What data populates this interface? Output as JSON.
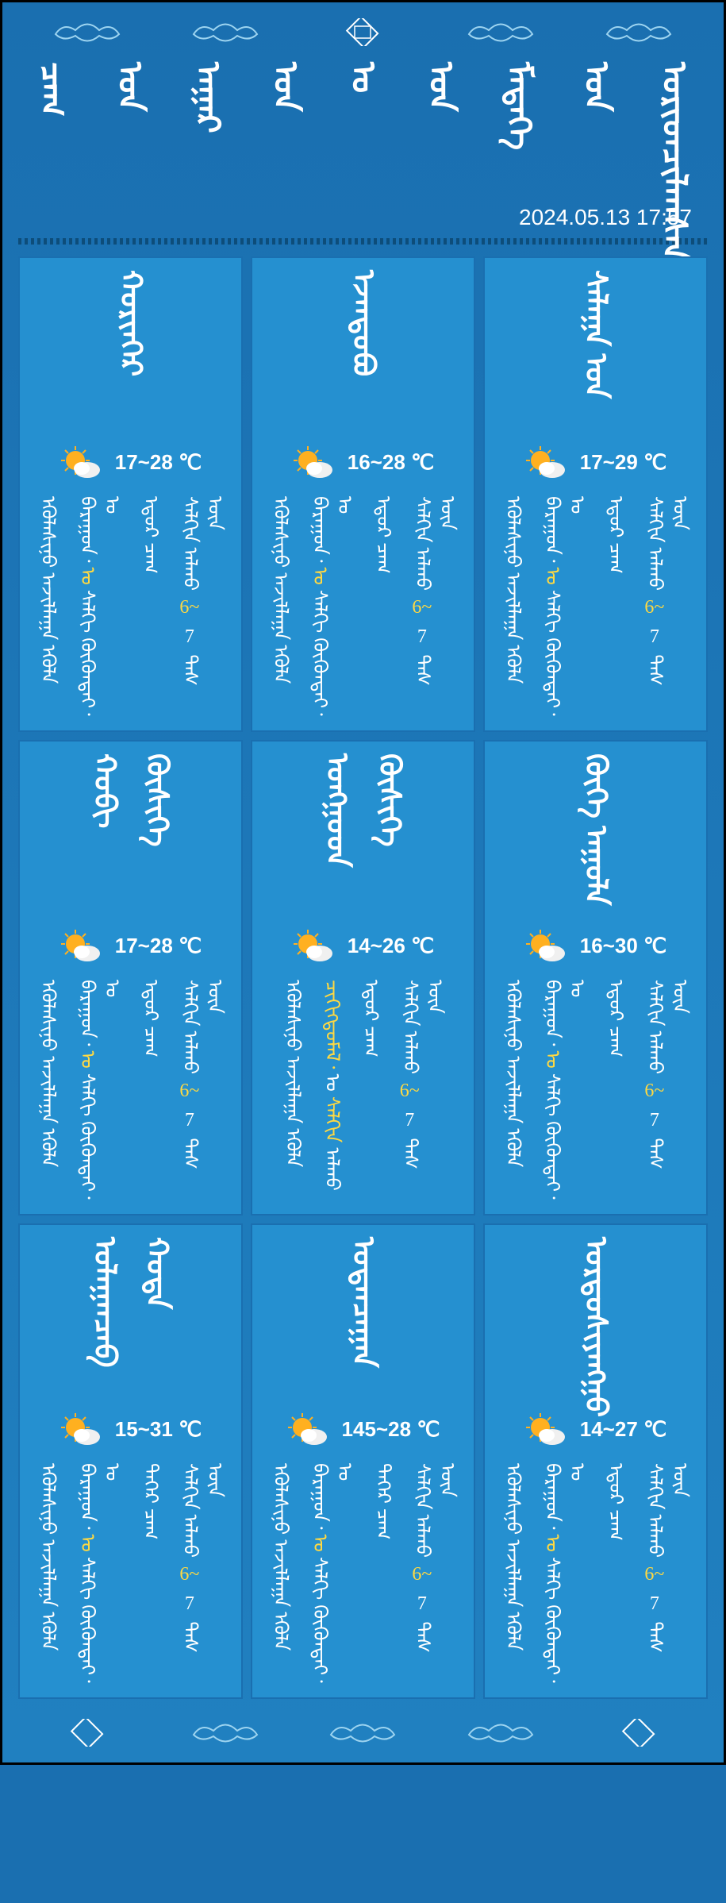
{
  "colors": {
    "background": "#1a6fb0",
    "card_background": "#2590d0",
    "text_white": "#ffffff",
    "text_yellow": "#ffd942",
    "border": "#000000"
  },
  "timestamp": "2024.05.13 17:57",
  "title_glyphs": [
    "ᠴᠠᠭ",
    "ᠤᠨ",
    "ᠠᠭᠠᠷ",
    "ᠤᠨ",
    "ᠣ",
    "ᠤᠨ",
    "ᠮᠡᠳᠡᠭᠡ",
    "ᠤᠨ",
    "ᠤᠷᠢᠳᠴᠢᠯᠠᠭᠰᠠᠨ"
  ],
  "cards": [
    {
      "location": "ᠬᠤᠷᠢᠨᠭᠡᠷ",
      "temp": "17~28 ℃",
      "details": [
        {
          "text": "ᠡᠭᠦᠯᠡᠰᠢᠨᠦ ᠠᠵᠢᠯᠯᠠᠭᠠ ᠡᠭᠦᠯᠡ",
          "colors": [
            "w",
            "w",
            "w"
          ]
        },
        {
          "text": "ᠪᠠᠷᠠᠭᠤᠨ᠂ ᠤ ᠰᠠᠯᠬᠢ ᠬᠦᠬᠦᠨᠳᠡᠢ᠂ ᠤ",
          "colors": [
            "w",
            "y",
            "w"
          ]
        },
        {
          "text": "ᠡᠳᠦᠷ ᠴᠠᠭ",
          "colors": [
            "w",
            "w"
          ]
        },
        {
          "text": "ᠰᠠᠯᠬᠢᠨ ᠠᠯᠬᠤ 6~ 7 ᠳᠡᠰ ᠦᠨ",
          "colors": [
            "w",
            "w",
            "y",
            "w",
            "w"
          ]
        }
      ]
    },
    {
      "location": "ᠡᠵᠡᠨᠳᠤᠪᠤ",
      "temp": "16~28 ℃",
      "details": [
        {
          "text": "ᠡᠭᠦᠯᠡᠰᠢᠨᠦ ᠠᠵᠢᠯᠯᠠᠭᠠ ᠡᠭᠦᠯᠡ",
          "colors": [
            "w",
            "w",
            "w"
          ]
        },
        {
          "text": "ᠪᠠᠷᠠᠭᠤᠨ᠂ ᠤ ᠰᠠᠯᠬᠢ ᠬᠦᠬᠦᠨᠳᠡᠢ᠂ ᠤ",
          "colors": [
            "w",
            "y",
            "w"
          ]
        },
        {
          "text": "ᠡᠳᠦᠷ ᠴᠠᠭ",
          "colors": [
            "w",
            "w"
          ]
        },
        {
          "text": "ᠰᠠᠯᠬᠢᠨ ᠠᠯᠬᠤ 6~ 7 ᠳᠡᠰ ᠦᠨ",
          "colors": [
            "w",
            "w",
            "y",
            "w",
            "w"
          ]
        }
      ]
    },
    {
      "location": "ᠰᠠᠯᠠᠭᠠ ᠤᠨ",
      "temp": "17~29 ℃",
      "details": [
        {
          "text": "ᠡᠭᠦᠯᠡᠰᠢᠨᠦ ᠠᠵᠢᠯᠯᠠᠭᠠ ᠡᠭᠦᠯᠡ",
          "colors": [
            "w",
            "w",
            "w"
          ]
        },
        {
          "text": "ᠪᠠᠷᠠᠭᠤᠨ᠂ ᠤ ᠰᠠᠯᠬᠢ ᠬᠦᠬᠦᠨᠳᠡᠢ᠂ ᠤ",
          "colors": [
            "w",
            "y",
            "w"
          ]
        },
        {
          "text": "ᠡᠳᠦᠷ ᠴᠠᠭ",
          "colors": [
            "w",
            "w"
          ]
        },
        {
          "text": "ᠰᠠᠯᠬᠢᠨ ᠠᠯᠬᠤ 6~ 7 ᠳᠡᠰ ᠦᠨ",
          "colors": [
            "w",
            "w",
            "y",
            "w",
            "w"
          ]
        }
      ]
    },
    {
      "location": "ᠬᠤᠪᠢ ᠬᠦᠰᠢᠭᠡ",
      "temp": "17~28 ℃",
      "details": [
        {
          "text": "ᠡᠭᠦᠯᠡᠰᠢᠨᠦ ᠠᠵᠢᠯᠯᠠᠭᠠ ᠡᠭᠦᠯᠡ",
          "colors": [
            "w",
            "w",
            "w"
          ]
        },
        {
          "text": "ᠪᠠᠷᠠᠭᠤᠨ᠂ ᠤ ᠰᠠᠯᠬᠢ ᠬᠦᠬᠦᠨᠳᠡᠢ᠂ ᠤ",
          "colors": [
            "w",
            "y",
            "w"
          ]
        },
        {
          "text": "ᠡᠳᠦᠷ ᠴᠠᠭ",
          "colors": [
            "w",
            "w"
          ]
        },
        {
          "text": "ᠰᠠᠯᠬᠢᠨ ᠠᠯᠬᠤ 6~ 7 ᠳᠡᠰ ᠦᠨ",
          "colors": [
            "w",
            "w",
            "y",
            "w",
            "w"
          ]
        }
      ]
    },
    {
      "location": "ᠤᠩᠭᠤᠳ ᠬᠦᠰᠢᠭᠡ",
      "temp": "14~26 ℃",
      "details": [
        {
          "text": "ᠡᠭᠦᠯᠡᠰᠢᠨᠦ ᠠᠵᠢᠯᠯᠠᠭᠠ ᠡᠭᠦᠯᠡ",
          "colors": [
            "w",
            "w",
            "w"
          ]
        },
        {
          "text": "ᠴᠢᠬᠢᠭᠳᠦᠮᠡᠯ᠂ ᠤ ᠰᠠᠯᠬᠢᠨ ᠠᠯᠬᠤ",
          "colors": [
            "y",
            "w",
            "y"
          ]
        },
        {
          "text": "ᠡᠳᠦᠷ ᠴᠠᠭ",
          "colors": [
            "w",
            "w"
          ]
        },
        {
          "text": "ᠰᠠᠯᠬᠢᠨ ᠠᠯᠬᠤ 6~ 7 ᠳᠡᠰ ᠦᠨ",
          "colors": [
            "w",
            "w",
            "y",
            "w",
            "w"
          ]
        }
      ]
    },
    {
      "location": "ᠬᠦᠭᠡ ᠠᠭᠤᠯᠠ",
      "temp": "16~30 ℃",
      "details": [
        {
          "text": "ᠡᠭᠦᠯᠡᠰᠢᠨᠦ ᠠᠵᠢᠯᠯᠠᠭᠠ ᠡᠭᠦᠯᠡ",
          "colors": [
            "w",
            "w",
            "w"
          ]
        },
        {
          "text": "ᠪᠠᠷᠠᠭᠤᠨ᠂ ᠤ ᠰᠠᠯᠬᠢ ᠬᠦᠬᠦᠨᠳᠡᠢ᠂ ᠤ",
          "colors": [
            "w",
            "y",
            "w"
          ]
        },
        {
          "text": "ᠡᠳᠦᠷ ᠴᠠᠭ",
          "colors": [
            "w",
            "w"
          ]
        },
        {
          "text": "ᠰᠠᠯᠬᠢᠨ ᠠᠯᠬᠤ 6~ 7 ᠳᠡᠰ ᠦᠨ",
          "colors": [
            "w",
            "w",
            "y",
            "w",
            "w"
          ]
        }
      ]
    },
    {
      "location": "ᠤᠯᠠᠭᠠᠨᠴᠠᠪ ᠬᠤᠲᠠ",
      "temp": "15~31 ℃",
      "details": [
        {
          "text": "ᠡᠭᠦᠯᠡᠰᠢᠨᠦ ᠠᠵᠢᠯᠯᠠᠭᠠ ᠡᠭᠦᠯᠡ",
          "colors": [
            "w",
            "w",
            "w"
          ]
        },
        {
          "text": "ᠪᠠᠷᠠᠭᠤᠨ᠂ ᠤ ᠰᠠᠯᠬᠢ ᠬᠦᠬᠦᠨᠳᠡᠢ᠂ ᠤ",
          "colors": [
            "w",
            "y",
            "w"
          ]
        },
        {
          "text": "ᠳᠡᠭᠡᠷ ᠴᠠᠭ",
          "colors": [
            "w",
            "w"
          ]
        },
        {
          "text": "ᠰᠠᠯᠬᠢᠨ ᠠᠯᠬᠤ 6~ 7 ᠳᠡᠰ ᠦᠨ",
          "colors": [
            "w",
            "w",
            "y",
            "w",
            "w"
          ]
        }
      ]
    },
    {
      "location": "ᠤᠳᠠᠨᠴᠠᠭᠠᠨ",
      "temp": "145~28 ℃",
      "details": [
        {
          "text": "ᠡᠭᠦᠯᠡᠰᠢᠨᠦ ᠠᠵᠢᠯᠯᠠᠭᠠ ᠡᠭᠦᠯᠡ",
          "colors": [
            "w",
            "w",
            "w"
          ]
        },
        {
          "text": "ᠪᠠᠷᠠᠭᠤᠨ᠂ ᠤ ᠰᠠᠯᠬᠢ ᠬᠦᠬᠦᠨᠳᠡᠢ᠂ ᠤ",
          "colors": [
            "w",
            "y",
            "w"
          ]
        },
        {
          "text": "ᠳᠡᠭᠡᠷ ᠴᠠᠭ",
          "colors": [
            "w",
            "w"
          ]
        },
        {
          "text": "ᠰᠠᠯᠬᠢᠨ ᠠᠯᠬᠤ 6~ 7 ᠳᠡᠰ ᠦᠨ",
          "colors": [
            "w",
            "w",
            "y",
            "w",
            "w"
          ]
        }
      ]
    },
    {
      "location": "ᠤᠷᠳᠤᠰᠢᠶᠠᠩᠭᠤ",
      "temp": "14~27 ℃",
      "details": [
        {
          "text": "ᠡᠭᠦᠯᠡᠰᠢᠨᠦ ᠠᠵᠢᠯᠯᠠᠭᠠ ᠡᠭᠦᠯᠡ",
          "colors": [
            "w",
            "w",
            "w"
          ]
        },
        {
          "text": "ᠪᠠᠷᠠᠭᠤᠨ᠂ ᠤ ᠰᠠᠯᠬᠢ ᠬᠦᠬᠦᠨᠳᠡᠢ᠂ ᠤ",
          "colors": [
            "w",
            "y",
            "w"
          ]
        },
        {
          "text": "ᠡᠳᠦᠷ ᠴᠠᠭ",
          "colors": [
            "w",
            "w"
          ]
        },
        {
          "text": "ᠰᠠᠯᠬᠢᠨ ᠠᠯᠬᠤ 6~ 7 ᠳᠡᠰ ᠦᠨ",
          "colors": [
            "w",
            "w",
            "y",
            "w",
            "w"
          ]
        }
      ]
    }
  ],
  "wind_range": "6~ 7"
}
